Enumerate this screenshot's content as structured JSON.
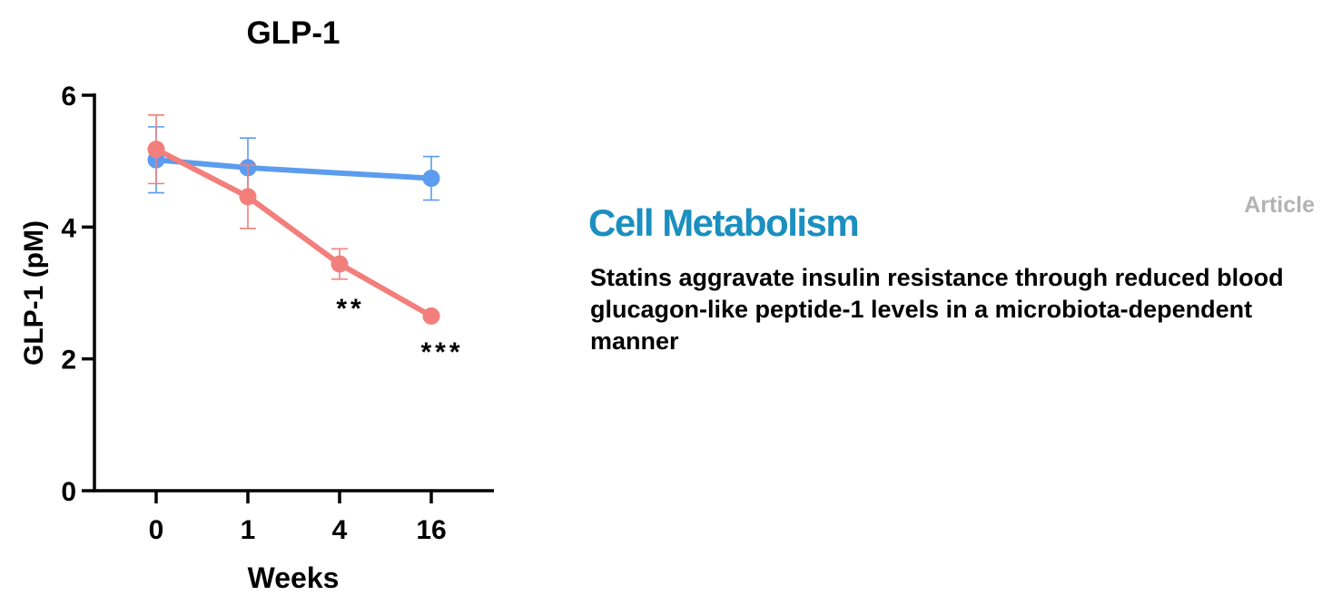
{
  "chart_data": {
    "type": "line",
    "title": "GLP-1",
    "xlabel": "Weeks",
    "ylabel": "GLP-1 (pM)",
    "categories": [
      "0",
      "1",
      "4",
      "16"
    ],
    "ylim": [
      0,
      6
    ],
    "yticks": [
      0,
      2,
      4,
      6
    ],
    "grid": false,
    "series": [
      {
        "color": "#5b9cee",
        "points": [
          {
            "x": "0",
            "y": 5.02,
            "err": 0.5
          },
          {
            "x": "1",
            "y": 4.9,
            "err": 0.45
          },
          {
            "x": "16",
            "y": 4.74,
            "err": 0.33
          }
        ]
      },
      {
        "color": "#f27f7c",
        "points": [
          {
            "x": "0",
            "y": 5.18,
            "err": 0.52
          },
          {
            "x": "1",
            "y": 4.46,
            "err": 0.48
          },
          {
            "x": "4",
            "y": 3.44,
            "err": 0.23
          },
          {
            "x": "16",
            "y": 2.65,
            "err": 0
          }
        ]
      }
    ],
    "annotations": [
      {
        "x": "4",
        "text": "**"
      },
      {
        "x": "16",
        "text": "***"
      }
    ]
  },
  "header": {
    "article_label": "Article",
    "journal": "Cell Metabolism",
    "title": "Statins aggravate insulin resistance through reduced blood glucagon-like peptide-1 levels in a microbiota-dependent manner"
  }
}
